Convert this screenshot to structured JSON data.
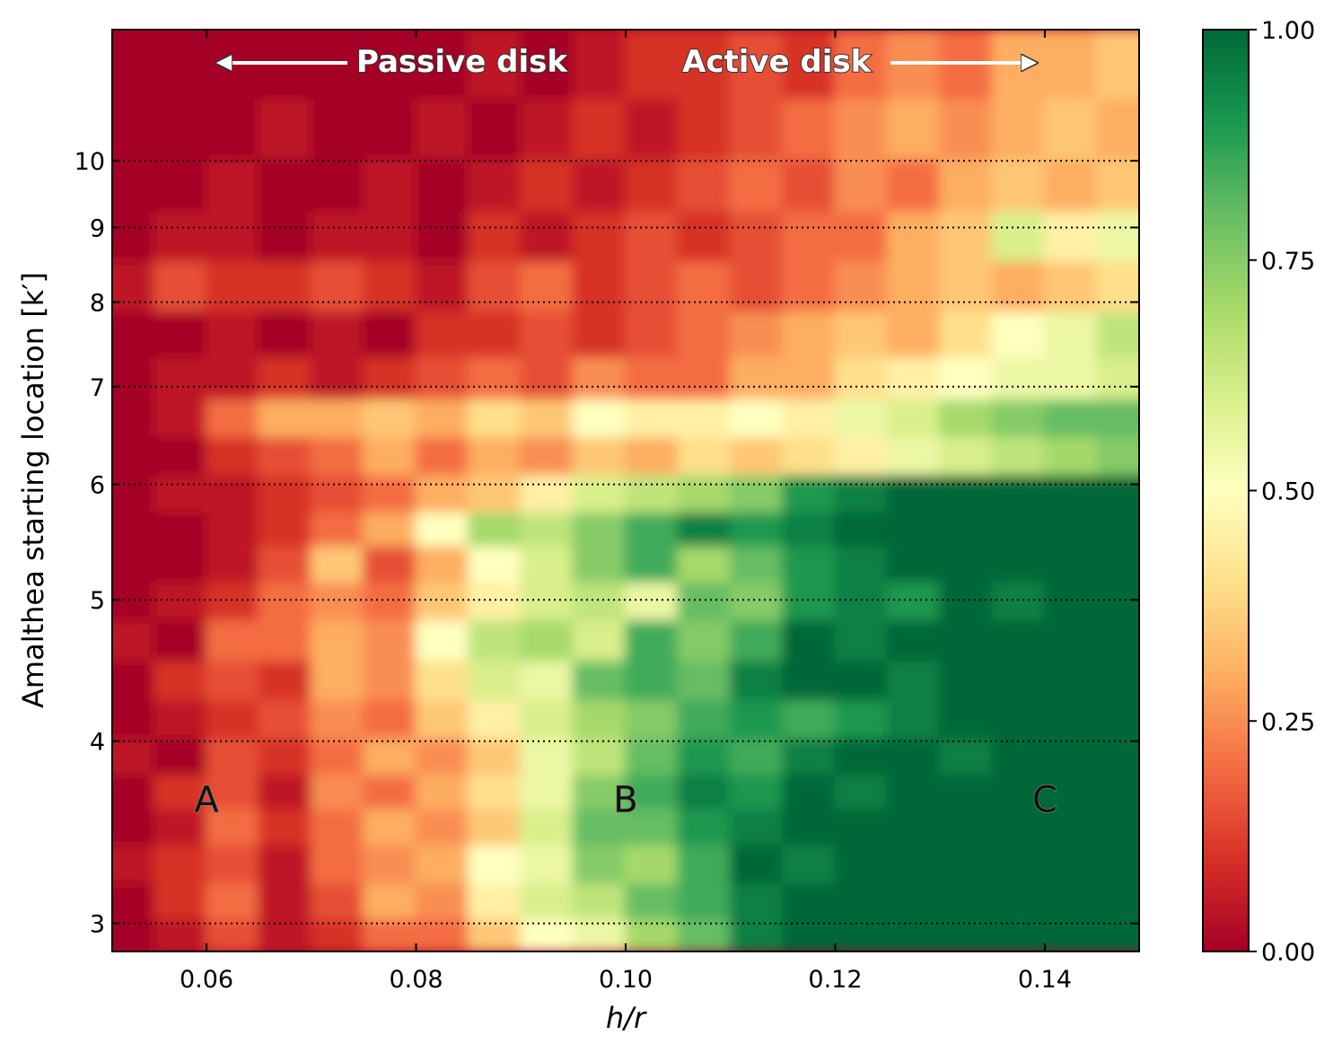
{
  "chart_data": {
    "type": "heatmap",
    "title": "",
    "xlabel": "h/r",
    "ylabel": "Amalthea starting location [k′]",
    "xlim": [
      0.051,
      0.149
    ],
    "ylim": [
      2.87,
      12.3
    ],
    "y_scale": "log",
    "x_ticks": [
      0.06,
      0.08,
      0.1,
      0.12,
      0.14
    ],
    "x_tick_labels": [
      "0.06",
      "0.08",
      "0.10",
      "0.12",
      "0.14"
    ],
    "y_ticks": [
      3,
      4,
      5,
      6,
      7,
      8,
      9,
      10
    ],
    "y_tick_labels": [
      "3",
      "4",
      "5",
      "6",
      "7",
      "8",
      "9",
      "10"
    ],
    "grid": "dotted horizontal lines at y ticks",
    "colormap": "RdYlGn",
    "colormap_stops": [
      "#a50026",
      "#d73027",
      "#f46d43",
      "#fdae61",
      "#fee08b",
      "#ffffbf",
      "#d9ef8b",
      "#a6d96a",
      "#66bd63",
      "#1a9850",
      "#006837"
    ],
    "colorbar": {
      "range": [
        0,
        1
      ],
      "ticks": [
        0.0,
        0.25,
        0.5,
        0.75,
        1.0
      ],
      "tick_labels": [
        "0.00",
        "0.25",
        "0.50",
        "0.75",
        "1.00"
      ]
    },
    "x_centers": [
      0.0525,
      0.0575,
      0.0625,
      0.0675,
      0.0725,
      0.0775,
      0.0825,
      0.0875,
      0.0925,
      0.0975,
      0.1025,
      0.1075,
      0.1125,
      0.1175,
      0.1225,
      0.1275,
      0.1325,
      0.1375,
      0.1425,
      0.1475
    ],
    "y_centers": [
      2.95,
      3.1,
      3.3,
      3.5,
      3.7,
      3.9,
      4.15,
      4.4,
      4.7,
      5.0,
      5.3,
      5.6,
      5.9,
      6.3,
      6.65,
      7.1,
      7.6,
      8.2,
      8.9,
      9.6,
      10.5,
      11.6
    ],
    "values": [
      [
        0.0,
        0.05,
        0.15,
        0.05,
        0.1,
        0.2,
        0.2,
        0.35,
        0.5,
        0.55,
        0.7,
        0.8,
        0.95,
        1.0,
        1.0,
        1.0,
        1.0,
        1.0,
        1.0,
        1.0
      ],
      [
        0.0,
        0.1,
        0.2,
        0.05,
        0.15,
        0.3,
        0.25,
        0.45,
        0.6,
        0.65,
        0.8,
        0.85,
        0.95,
        1.0,
        1.0,
        1.0,
        1.0,
        1.0,
        1.0,
        1.0
      ],
      [
        0.05,
        0.1,
        0.15,
        0.05,
        0.2,
        0.25,
        0.3,
        0.5,
        0.55,
        0.75,
        0.7,
        0.85,
        1.0,
        0.95,
        1.0,
        1.0,
        1.0,
        1.0,
        1.0,
        1.0
      ],
      [
        0.0,
        0.05,
        0.2,
        0.1,
        0.2,
        0.3,
        0.25,
        0.35,
        0.6,
        0.8,
        0.8,
        0.9,
        0.95,
        1.0,
        1.0,
        1.0,
        1.0,
        1.0,
        1.0,
        1.0
      ],
      [
        0.0,
        0.1,
        0.15,
        0.05,
        0.25,
        0.2,
        0.3,
        0.4,
        0.55,
        0.75,
        0.85,
        0.95,
        0.9,
        1.0,
        0.95,
        1.0,
        1.0,
        1.0,
        1.0,
        1.0
      ],
      [
        0.05,
        0.0,
        0.15,
        0.1,
        0.2,
        0.3,
        0.25,
        0.35,
        0.55,
        0.65,
        0.8,
        0.9,
        0.85,
        0.95,
        1.0,
        1.0,
        0.95,
        1.0,
        1.0,
        1.0
      ],
      [
        0.0,
        0.05,
        0.1,
        0.15,
        0.25,
        0.2,
        0.35,
        0.45,
        0.6,
        0.7,
        0.75,
        0.85,
        0.9,
        0.85,
        0.9,
        0.95,
        1.0,
        1.0,
        1.0,
        1.0
      ],
      [
        0.0,
        0.1,
        0.15,
        0.1,
        0.3,
        0.25,
        0.4,
        0.6,
        0.55,
        0.8,
        0.85,
        0.8,
        0.95,
        1.0,
        1.0,
        0.95,
        1.0,
        1.0,
        1.0,
        1.0
      ],
      [
        0.05,
        0.0,
        0.2,
        0.2,
        0.3,
        0.25,
        0.5,
        0.65,
        0.7,
        0.6,
        0.85,
        0.75,
        0.85,
        1.0,
        0.95,
        1.0,
        1.0,
        1.0,
        1.0,
        1.0
      ],
      [
        0.0,
        0.05,
        0.1,
        0.2,
        0.25,
        0.2,
        0.35,
        0.45,
        0.6,
        0.65,
        0.55,
        0.8,
        0.75,
        0.9,
        0.95,
        0.9,
        1.0,
        0.95,
        1.0,
        1.0
      ],
      [
        0.0,
        0.0,
        0.05,
        0.15,
        0.35,
        0.15,
        0.3,
        0.5,
        0.6,
        0.75,
        0.85,
        0.7,
        0.8,
        0.9,
        0.95,
        1.0,
        1.0,
        1.0,
        1.0,
        1.0
      ],
      [
        0.0,
        0.0,
        0.05,
        0.1,
        0.2,
        0.3,
        0.5,
        0.7,
        0.65,
        0.75,
        0.85,
        0.95,
        0.9,
        0.95,
        1.0,
        1.0,
        1.0,
        1.0,
        1.0,
        1.0
      ],
      [
        0.0,
        0.05,
        0.05,
        0.1,
        0.15,
        0.2,
        0.3,
        0.35,
        0.45,
        0.6,
        0.65,
        0.7,
        0.75,
        0.9,
        0.95,
        1.0,
        1.0,
        1.0,
        1.0,
        1.0
      ],
      [
        0.0,
        0.0,
        0.1,
        0.15,
        0.2,
        0.3,
        0.2,
        0.3,
        0.25,
        0.35,
        0.3,
        0.4,
        0.35,
        0.4,
        0.45,
        0.55,
        0.6,
        0.65,
        0.7,
        0.75
      ],
      [
        0.0,
        0.05,
        0.2,
        0.3,
        0.3,
        0.35,
        0.3,
        0.4,
        0.35,
        0.5,
        0.45,
        0.45,
        0.5,
        0.45,
        0.55,
        0.6,
        0.7,
        0.75,
        0.8,
        0.8
      ],
      [
        0.0,
        0.05,
        0.05,
        0.1,
        0.05,
        0.1,
        0.15,
        0.2,
        0.15,
        0.25,
        0.2,
        0.2,
        0.3,
        0.3,
        0.4,
        0.45,
        0.5,
        0.55,
        0.55,
        0.6
      ],
      [
        0.0,
        0.0,
        0.05,
        0.0,
        0.05,
        0.0,
        0.1,
        0.1,
        0.15,
        0.1,
        0.15,
        0.2,
        0.25,
        0.3,
        0.35,
        0.3,
        0.4,
        0.5,
        0.55,
        0.65
      ],
      [
        0.05,
        0.15,
        0.1,
        0.1,
        0.15,
        0.1,
        0.05,
        0.15,
        0.2,
        0.1,
        0.15,
        0.2,
        0.15,
        0.2,
        0.25,
        0.3,
        0.35,
        0.3,
        0.35,
        0.4
      ],
      [
        0.0,
        0.05,
        0.05,
        0.0,
        0.05,
        0.05,
        0.0,
        0.1,
        0.05,
        0.1,
        0.15,
        0.1,
        0.15,
        0.2,
        0.2,
        0.3,
        0.35,
        0.6,
        0.45,
        0.55
      ],
      [
        0.0,
        0.0,
        0.05,
        0.0,
        0.0,
        0.05,
        0.0,
        0.05,
        0.1,
        0.05,
        0.1,
        0.15,
        0.2,
        0.15,
        0.25,
        0.2,
        0.3,
        0.35,
        0.3,
        0.35
      ],
      [
        0.0,
        0.0,
        0.0,
        0.05,
        0.0,
        0.0,
        0.05,
        0.0,
        0.05,
        0.1,
        0.05,
        0.1,
        0.15,
        0.2,
        0.25,
        0.3,
        0.25,
        0.3,
        0.35,
        0.3
      ],
      [
        0.0,
        0.0,
        0.0,
        0.0,
        0.0,
        0.0,
        0.0,
        0.05,
        0.0,
        0.05,
        0.1,
        0.1,
        0.15,
        0.1,
        0.2,
        0.25,
        0.2,
        0.3,
        0.3,
        0.35
      ]
    ],
    "annotations": {
      "regions": [
        {
          "label": "A",
          "x": 0.06,
          "y": 3.65
        },
        {
          "label": "B",
          "x": 0.1,
          "y": 3.65
        },
        {
          "label": "C",
          "x": 0.14,
          "y": 3.65
        }
      ],
      "passive_disk": {
        "label": "Passive disk",
        "arrow": "left"
      },
      "active_disk": {
        "label": "Active disk",
        "arrow": "right"
      }
    }
  }
}
